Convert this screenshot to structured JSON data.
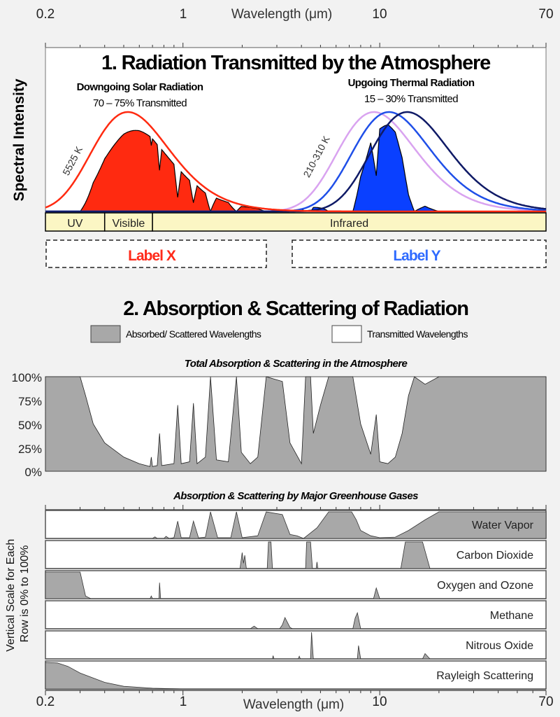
{
  "chart_data": [
    {
      "type": "line",
      "title": "1. Radiation Transmitted by the Atmosphere",
      "xlabel": "Wavelength (μm)",
      "ylabel": "Spectral Intensity",
      "xscale": "log",
      "xlim": [
        0.2,
        70
      ],
      "xticks": [
        "0.2",
        "1",
        "10",
        "70"
      ],
      "solar": {
        "title": "Downgoing Solar Radiation",
        "subtitle": "70 – 75% Transmitted",
        "temp_label": "5525 K",
        "temperature_K": 5525,
        "color": "#ff2a10"
      },
      "thermal": {
        "title": "Upgoing Thermal Radiation",
        "subtitle": "15 – 30% Transmitted",
        "temp_label": "210-310 K",
        "temperatures_K": [
          310,
          260,
          210
        ],
        "colors": [
          "#d9a3f0",
          "#1f4fe8",
          "#0f1a66"
        ],
        "fill_color": "#0a40ff"
      },
      "bands": [
        {
          "label": "UV",
          "from": 0.2,
          "to": 0.4
        },
        {
          "label": "Visible",
          "from": 0.4,
          "to": 0.7
        },
        {
          "label": "Infrared",
          "from": 0.7,
          "to": 70
        }
      ],
      "band_color": "#fbf6c4",
      "label_x": {
        "text": "Label X",
        "color": "#ff2a1a"
      },
      "label_y": {
        "text": "Label Y",
        "color": "#2f6bff"
      }
    },
    {
      "type": "area",
      "title": "2. Absorption & Scattering of Radiation",
      "legend": [
        {
          "label": "Absorbed/ Scattered Wavelengths",
          "color": "#a8a8a8"
        },
        {
          "label": "Transmitted Wavelengths",
          "color": "#ffffff"
        }
      ],
      "subtitle": "Total Absorption & Scattering in the Atmosphere",
      "yticks": [
        "100%",
        "75%",
        "50%",
        "25%",
        "0%"
      ],
      "ylim": [
        0,
        100
      ],
      "xscale": "log",
      "total": [
        [
          0.2,
          100
        ],
        [
          0.3,
          100
        ],
        [
          0.32,
          80
        ],
        [
          0.35,
          50
        ],
        [
          0.4,
          30
        ],
        [
          0.5,
          15
        ],
        [
          0.6,
          8
        ],
        [
          0.68,
          5
        ],
        [
          0.69,
          15
        ],
        [
          0.7,
          5
        ],
        [
          0.74,
          6
        ],
        [
          0.76,
          40
        ],
        [
          0.78,
          6
        ],
        [
          0.9,
          8
        ],
        [
          0.94,
          70
        ],
        [
          0.98,
          8
        ],
        [
          1.08,
          10
        ],
        [
          1.13,
          72
        ],
        [
          1.18,
          8
        ],
        [
          1.3,
          15
        ],
        [
          1.38,
          100
        ],
        [
          1.48,
          12
        ],
        [
          1.7,
          10
        ],
        [
          1.87,
          100
        ],
        [
          1.98,
          20
        ],
        [
          2.2,
          8
        ],
        [
          2.4,
          15
        ],
        [
          2.65,
          100
        ],
        [
          3.2,
          95
        ],
        [
          3.5,
          30
        ],
        [
          4.0,
          8
        ],
        [
          4.2,
          100
        ],
        [
          4.45,
          100
        ],
        [
          4.6,
          40
        ],
        [
          5.0,
          70
        ],
        [
          5.5,
          100
        ],
        [
          7.3,
          100
        ],
        [
          8.0,
          50
        ],
        [
          9.0,
          18
        ],
        [
          9.6,
          60
        ],
        [
          10.0,
          10
        ],
        [
          11.0,
          8
        ],
        [
          12.0,
          15
        ],
        [
          13.0,
          40
        ],
        [
          14.0,
          80
        ],
        [
          15.0,
          100
        ],
        [
          17.0,
          92
        ],
        [
          20.0,
          100
        ],
        [
          70,
          100
        ]
      ]
    },
    {
      "type": "area",
      "title": "Absorption & Scattering by Major Greenhouse Gases",
      "ylabel": "Vertical Scale for Each Row is 0% to 100%",
      "xlabel": "Wavelength (μm)",
      "xscale": "log",
      "xticks": [
        "0.2",
        "1",
        "10",
        "70"
      ],
      "rows": [
        {
          "name": "Water Vapor",
          "values": [
            [
              0.2,
              0
            ],
            [
              0.6,
              0
            ],
            [
              0.7,
              0
            ],
            [
              0.72,
              6
            ],
            [
              0.74,
              0
            ],
            [
              0.8,
              0
            ],
            [
              0.82,
              8
            ],
            [
              0.85,
              0
            ],
            [
              0.9,
              3
            ],
            [
              0.94,
              65
            ],
            [
              0.98,
              3
            ],
            [
              1.08,
              3
            ],
            [
              1.13,
              65
            ],
            [
              1.2,
              2
            ],
            [
              1.3,
              5
            ],
            [
              1.38,
              100
            ],
            [
              1.5,
              3
            ],
            [
              1.75,
              3
            ],
            [
              1.87,
              100
            ],
            [
              2.0,
              3
            ],
            [
              2.4,
              10
            ],
            [
              2.65,
              100
            ],
            [
              3.2,
              90
            ],
            [
              3.5,
              15
            ],
            [
              3.8,
              10
            ],
            [
              4.1,
              0
            ],
            [
              4.8,
              40
            ],
            [
              5.5,
              100
            ],
            [
              7.2,
              100
            ],
            [
              7.6,
              70
            ],
            [
              8.0,
              30
            ],
            [
              9.0,
              10
            ],
            [
              10,
              3
            ],
            [
              12,
              5
            ],
            [
              14,
              30
            ],
            [
              17,
              70
            ],
            [
              20,
              100
            ],
            [
              70,
              100
            ]
          ]
        },
        {
          "name": "Carbon Dioxide",
          "values": [
            [
              0.2,
              0
            ],
            [
              1.95,
              0
            ],
            [
              2.0,
              60
            ],
            [
              2.03,
              20
            ],
            [
              2.06,
              50
            ],
            [
              2.1,
              0
            ],
            [
              2.68,
              0
            ],
            [
              2.72,
              100
            ],
            [
              2.8,
              100
            ],
            [
              2.85,
              0
            ],
            [
              4.2,
              0
            ],
            [
              4.25,
              100
            ],
            [
              4.45,
              100
            ],
            [
              4.55,
              0
            ],
            [
              4.75,
              0
            ],
            [
              4.8,
              25
            ],
            [
              4.85,
              0
            ],
            [
              12.8,
              0
            ],
            [
              13.5,
              100
            ],
            [
              16.5,
              100
            ],
            [
              18,
              0
            ],
            [
              70,
              0
            ]
          ]
        },
        {
          "name": "Oxygen and Ozone",
          "values": [
            [
              0.2,
              100
            ],
            [
              0.3,
              100
            ],
            [
              0.32,
              10
            ],
            [
              0.34,
              0
            ],
            [
              0.68,
              0
            ],
            [
              0.69,
              10
            ],
            [
              0.7,
              0
            ],
            [
              0.755,
              0
            ],
            [
              0.76,
              60
            ],
            [
              0.77,
              0
            ],
            [
              9.3,
              0
            ],
            [
              9.6,
              40
            ],
            [
              10.0,
              0
            ],
            [
              70,
              0
            ]
          ]
        },
        {
          "name": "Methane",
          "values": [
            [
              0.2,
              0
            ],
            [
              2.2,
              0
            ],
            [
              2.3,
              10
            ],
            [
              2.4,
              0
            ],
            [
              3.1,
              0
            ],
            [
              3.2,
              15
            ],
            [
              3.3,
              42
            ],
            [
              3.5,
              5
            ],
            [
              3.6,
              0
            ],
            [
              7.3,
              0
            ],
            [
              7.5,
              40
            ],
            [
              7.7,
              60
            ],
            [
              8.0,
              0
            ],
            [
              70,
              0
            ]
          ]
        },
        {
          "name": "Nitrous Oxide",
          "values": [
            [
              0.2,
              0
            ],
            [
              2.85,
              0
            ],
            [
              2.87,
              12
            ],
            [
              2.9,
              0
            ],
            [
              3.85,
              0
            ],
            [
              3.9,
              10
            ],
            [
              3.95,
              0
            ],
            [
              4.45,
              0
            ],
            [
              4.5,
              100
            ],
            [
              4.6,
              0
            ],
            [
              7.7,
              0
            ],
            [
              7.8,
              50
            ],
            [
              8.0,
              0
            ],
            [
              16.5,
              0
            ],
            [
              17,
              20
            ],
            [
              18,
              0
            ],
            [
              70,
              0
            ]
          ]
        },
        {
          "name": "Rayleigh Scattering",
          "values": [
            [
              0.2,
              100
            ],
            [
              0.23,
              98
            ],
            [
              0.26,
              85
            ],
            [
              0.3,
              60
            ],
            [
              0.4,
              25
            ],
            [
              0.5,
              10
            ],
            [
              0.7,
              3
            ],
            [
              1.0,
              0
            ],
            [
              70,
              0
            ]
          ]
        }
      ]
    }
  ]
}
